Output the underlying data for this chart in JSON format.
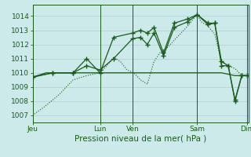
{
  "background_color": "#cceaea",
  "grid_color": "#aacfcf",
  "line_color": "#1a5c1a",
  "title": "Pression niveau de la mer( hPa )",
  "tick_fontsize": 6.5,
  "xlabel_fontsize": 7.5,
  "ylim": [
    1006.5,
    1014.8
  ],
  "yticks": [
    1007,
    1008,
    1009,
    1010,
    1011,
    1012,
    1013,
    1014
  ],
  "x_day_labels": [
    "Jeu",
    "Lun",
    "Ven",
    "Sam",
    "Dim"
  ],
  "x_day_positions": [
    0,
    100,
    148,
    244,
    318
  ],
  "xlim": [
    0,
    320
  ],
  "dotted_series": {
    "x": [
      0,
      20,
      40,
      60,
      80,
      100,
      110,
      120,
      130,
      140,
      150,
      160,
      170,
      180,
      190,
      200,
      210,
      220,
      230,
      240,
      244,
      250,
      260,
      270,
      280,
      290,
      300,
      310,
      318
    ],
    "y": [
      1007.0,
      1007.7,
      1008.5,
      1009.5,
      1009.8,
      1010.0,
      1010.5,
      1011.1,
      1010.8,
      1010.2,
      1010.0,
      1009.5,
      1009.2,
      1010.8,
      1011.5,
      1011.8,
      1012.3,
      1012.8,
      1013.3,
      1013.9,
      1014.1,
      1013.6,
      1013.3,
      1012.7,
      1010.8,
      1010.5,
      1010.3,
      1009.8,
      1009.8
    ]
  },
  "flat_series": {
    "x": [
      0,
      20,
      40,
      60,
      80,
      100,
      130,
      148,
      180,
      210,
      244,
      280,
      300,
      318
    ],
    "y": [
      1009.7,
      1010.0,
      1010.0,
      1010.0,
      1010.0,
      1010.0,
      1010.0,
      1010.0,
      1010.0,
      1010.0,
      1010.0,
      1010.0,
      1009.8,
      1009.8
    ]
  },
  "series3": {
    "x": [
      0,
      30,
      60,
      80,
      100,
      120,
      148,
      160,
      170,
      180,
      194,
      210,
      230,
      244,
      260,
      270,
      280,
      290,
      300,
      310,
      318
    ],
    "y": [
      1009.7,
      1010.0,
      1010.0,
      1010.5,
      1010.2,
      1011.0,
      1012.4,
      1012.5,
      1012.0,
      1012.8,
      1011.2,
      1013.2,
      1013.6,
      1014.1,
      1013.5,
      1013.5,
      1010.8,
      1010.5,
      1008.1,
      1009.8,
      1009.8
    ]
  },
  "series4": {
    "x": [
      0,
      30,
      60,
      80,
      100,
      120,
      148,
      160,
      170,
      180,
      194,
      210,
      230,
      244,
      260,
      270,
      280,
      290,
      300,
      310,
      318
    ],
    "y": [
      1009.7,
      1010.0,
      1010.0,
      1011.0,
      1010.0,
      1012.5,
      1012.8,
      1013.0,
      1012.8,
      1013.2,
      1011.4,
      1013.5,
      1013.8,
      1014.1,
      1013.4,
      1013.5,
      1010.5,
      1010.5,
      1008.0,
      1009.8,
      1009.8
    ]
  }
}
